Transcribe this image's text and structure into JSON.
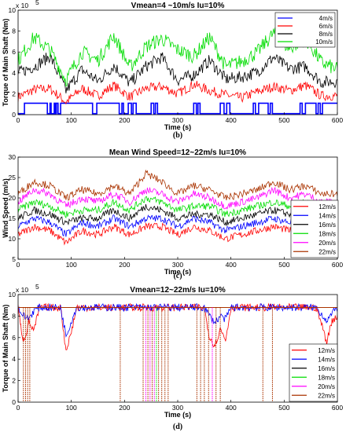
{
  "chart_data": [
    {
      "type": "line",
      "title": "Vmean=4 ~10m/s  Iu=10%",
      "xlabel": "Time (s)",
      "ylabel": "Torque of Main Shaft (Nm)",
      "y_multiplier": "x 10",
      "y_exponent": "5",
      "caption": "(b)",
      "xlim": [
        0,
        600
      ],
      "ylim": [
        0,
        10
      ],
      "x_ticks": [
        "0",
        "100",
        "200",
        "300",
        "400",
        "500",
        "600"
      ],
      "y_ticks": [
        "0",
        "2",
        "4",
        "6",
        "8",
        "10"
      ],
      "grid": false,
      "legend_position": "top-right",
      "series": [
        {
          "name": "4m/s",
          "color": "#0000ff",
          "style": "band",
          "values": [
            0.1,
            1.1
          ]
        },
        {
          "name": "6m/s",
          "color": "#ff0000",
          "x": [
            0,
            30,
            60,
            90,
            120,
            150,
            180,
            210,
            240,
            270,
            300,
            330,
            360,
            390,
            420,
            450,
            480,
            510,
            540,
            570,
            600
          ],
          "values": [
            1.7,
            2.4,
            2.5,
            1.2,
            2.5,
            1.8,
            2.8,
            1.7,
            2.5,
            2.7,
            2.0,
            2.9,
            2.3,
            1.9,
            1.6,
            2.2,
            2.7,
            2.3,
            2.8,
            1.8,
            1.8
          ]
        },
        {
          "name": "8m/s",
          "color": "#000000",
          "x": [
            0,
            30,
            60,
            90,
            120,
            150,
            180,
            210,
            240,
            270,
            300,
            330,
            360,
            390,
            420,
            450,
            480,
            510,
            540,
            570,
            600
          ],
          "values": [
            4.0,
            4.6,
            5.6,
            2.3,
            4.3,
            3.2,
            4.7,
            3.0,
            4.6,
            5.5,
            3.3,
            3.8,
            5.2,
            3.4,
            3.6,
            4.1,
            5.5,
            4.4,
            4.6,
            3.1,
            3.2
          ]
        },
        {
          "name": "10m/s",
          "color": "#00dd00",
          "x": [
            0,
            30,
            60,
            90,
            120,
            150,
            180,
            210,
            240,
            270,
            300,
            330,
            360,
            390,
            420,
            450,
            480,
            510,
            540,
            570,
            600
          ],
          "values": [
            5.2,
            7.4,
            6.2,
            3.3,
            6.0,
            5.2,
            7.6,
            4.5,
            6.5,
            7.3,
            6.2,
            5.6,
            7.4,
            4.6,
            5.1,
            6.0,
            7.8,
            6.3,
            7.3,
            5.0,
            4.3
          ]
        }
      ]
    },
    {
      "type": "line",
      "title": "Mean Wind Speed=12~22m/s  Iu=10%",
      "xlabel": "Time (s)",
      "ylabel": "Wind Speed (m/s)",
      "caption": "(c)",
      "xlim": [
        0,
        600
      ],
      "ylim": [
        5,
        30
      ],
      "x_ticks": [
        "0",
        "100",
        "200",
        "300",
        "400",
        "500",
        "600"
      ],
      "y_ticks": [
        "5",
        "10",
        "15",
        "20",
        "25",
        "30"
      ],
      "grid": false,
      "legend_position": "right",
      "series": [
        {
          "name": "12m/s",
          "color": "#ff0000",
          "x": [
            0,
            30,
            60,
            90,
            120,
            150,
            180,
            210,
            240,
            270,
            300,
            330,
            360,
            390,
            420,
            450,
            480,
            510,
            540,
            570,
            600
          ],
          "values": [
            11,
            13,
            12,
            9,
            12,
            11,
            13,
            11,
            13,
            13,
            11,
            13,
            12,
            10,
            11,
            12,
            13,
            12,
            13,
            11,
            11
          ]
        },
        {
          "name": "14m/s",
          "color": "#0000ff",
          "x": [
            0,
            30,
            60,
            90,
            120,
            150,
            180,
            210,
            240,
            270,
            300,
            330,
            360,
            390,
            420,
            450,
            480,
            510,
            540,
            570,
            600
          ],
          "values": [
            13,
            15,
            14,
            11,
            14,
            13,
            15,
            13,
            15,
            15,
            13,
            15,
            14,
            12,
            13,
            14,
            15,
            14,
            15,
            13,
            13
          ]
        },
        {
          "name": "16m/s",
          "color": "#000000",
          "x": [
            0,
            30,
            60,
            90,
            120,
            150,
            180,
            210,
            240,
            270,
            300,
            330,
            360,
            390,
            420,
            450,
            480,
            510,
            540,
            570,
            600
          ],
          "values": [
            15,
            17,
            16,
            14,
            15,
            15,
            17,
            15,
            18,
            17,
            15,
            16,
            16,
            14,
            15,
            16,
            17,
            16,
            17,
            15,
            15
          ]
        },
        {
          "name": "18m/s",
          "color": "#00dd00",
          "x": [
            0,
            30,
            60,
            90,
            120,
            150,
            180,
            210,
            240,
            270,
            300,
            330,
            360,
            390,
            420,
            450,
            480,
            510,
            540,
            570,
            600
          ],
          "values": [
            17,
            19,
            18,
            16,
            17,
            17,
            19,
            17,
            20,
            19,
            17,
            18,
            18,
            16,
            17,
            18,
            19,
            18,
            19,
            17,
            17
          ]
        },
        {
          "name": "20m/s",
          "color": "#ff00ff",
          "x": [
            0,
            30,
            60,
            90,
            120,
            150,
            180,
            210,
            240,
            270,
            300,
            330,
            360,
            390,
            420,
            450,
            480,
            510,
            540,
            570,
            600
          ],
          "values": [
            19,
            22,
            21,
            18,
            20,
            19,
            21,
            19,
            22,
            21,
            19,
            21,
            20,
            18,
            19,
            20,
            22,
            20,
            21,
            19,
            19
          ]
        },
        {
          "name": "22m/s",
          "color": "#aa3300",
          "x": [
            0,
            30,
            60,
            90,
            120,
            150,
            180,
            210,
            240,
            270,
            300,
            330,
            360,
            390,
            420,
            450,
            480,
            510,
            540,
            570,
            600
          ],
          "values": [
            21,
            24,
            23,
            20,
            22,
            21,
            23,
            21,
            26,
            24,
            21,
            23,
            22,
            20,
            21,
            22,
            24,
            22,
            23,
            21,
            21
          ]
        }
      ]
    },
    {
      "type": "line",
      "title": "Vmean=12~22m/s  Iu=10%",
      "xlabel": "Time (s)",
      "ylabel": "Torque of Main Shaft (Nm)",
      "y_multiplier": "x 10",
      "y_exponent": "5",
      "caption": "(d)",
      "xlim": [
        0,
        600
      ],
      "ylim": [
        0,
        10
      ],
      "x_ticks": [
        "0",
        "100",
        "200",
        "300",
        "400",
        "500",
        "600"
      ],
      "y_ticks": [
        "0",
        "2",
        "4",
        "6",
        "8",
        "10"
      ],
      "grid": false,
      "legend_position": "right",
      "rated_value": 8.8,
      "series": [
        {
          "name": "12m/s",
          "color": "#ff0000",
          "x": [
            0,
            5,
            10,
            15,
            20,
            30,
            40,
            80,
            90,
            100,
            110,
            350,
            360,
            370,
            380,
            390,
            400,
            560,
            570,
            580,
            590,
            600
          ],
          "values": [
            8.8,
            7.0,
            5.8,
            6.4,
            7.5,
            6.6,
            8.8,
            8.8,
            4.8,
            6.5,
            8.8,
            8.8,
            6.0,
            5.3,
            6.8,
            5.8,
            8.8,
            8.8,
            7.3,
            5.6,
            7.6,
            8.0
          ]
        },
        {
          "name": "14m/s",
          "color": "#0000ff",
          "x": [
            0,
            10,
            20,
            30,
            40,
            80,
            90,
            100,
            110,
            350,
            360,
            370,
            380,
            390,
            400,
            560,
            580,
            600
          ],
          "values": [
            8.8,
            8.0,
            7.8,
            8.5,
            8.8,
            8.8,
            6.2,
            7.5,
            8.8,
            8.8,
            8.0,
            7.4,
            8.0,
            7.7,
            8.8,
            8.8,
            7.6,
            8.8
          ]
        },
        {
          "name": "16m/s",
          "color": "#000000",
          "x": [
            0,
            600
          ],
          "values": [
            8.8,
            8.8
          ]
        },
        {
          "name": "18m/s",
          "color": "#00dd00",
          "x": [
            0,
            600
          ],
          "values": [
            8.8,
            8.8
          ]
        },
        {
          "name": "20m/s",
          "color": "#ff00ff",
          "x": [
            0,
            600
          ],
          "values": [
            8.8,
            8.8
          ]
        },
        {
          "name": "22m/s",
          "color": "#aa3300",
          "x": [
            0,
            600
          ],
          "values": [
            8.8,
            8.8
          ]
        }
      ]
    }
  ]
}
